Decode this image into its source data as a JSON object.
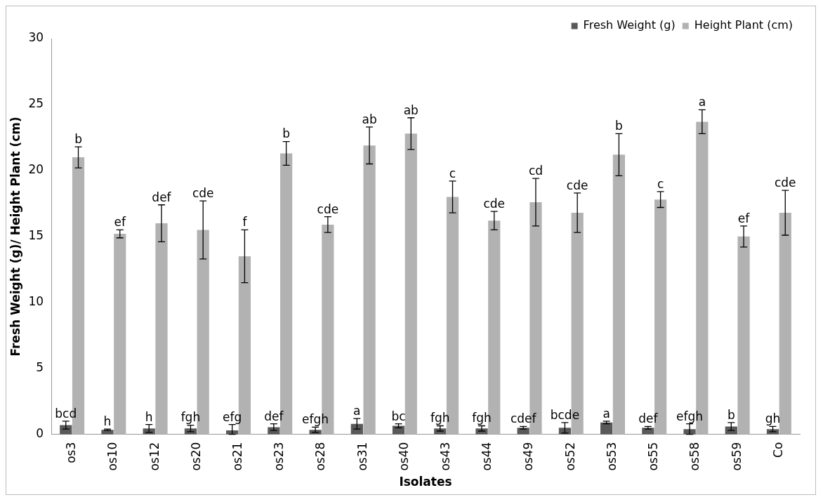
{
  "chart_data": {
    "type": "bar",
    "xlabel": "Isolates",
    "ylabel": "Fresh Weight (g)/ Height Plant (cm)",
    "categories": [
      "os3",
      "os10",
      "os12",
      "os20",
      "os21",
      "os23",
      "os28",
      "os31",
      "os40",
      "os43",
      "os44",
      "os49",
      "os52",
      "os53",
      "os55",
      "os58",
      "os59",
      "Co"
    ],
    "series": [
      {
        "name": "Fresh Weight (g)",
        "color": "#595959",
        "values": [
          0.7,
          0.35,
          0.45,
          0.45,
          0.3,
          0.55,
          0.35,
          0.8,
          0.65,
          0.45,
          0.45,
          0.5,
          0.5,
          0.9,
          0.5,
          0.4,
          0.6,
          0.4
        ],
        "errors": [
          0.3,
          0.05,
          0.3,
          0.25,
          [
            0,
            0.75
          ],
          0.25,
          0.2,
          0.4,
          0.15,
          0.2,
          0.2,
          0.1,
          0.4,
          0.1,
          0.1,
          0.4,
          0.3,
          0.2
        ],
        "value_labels": [
          "bcd",
          "h",
          "h",
          "fgh",
          "efg",
          "def",
          "efgh",
          "a",
          "bc",
          "fgh",
          "fgh",
          "cdef",
          "bcde",
          "a",
          "def",
          "efgh",
          "b",
          "gh"
        ]
      },
      {
        "name": "Height Plant (cm)",
        "color": "#b2b2b2",
        "values": [
          21.0,
          15.2,
          16.0,
          15.5,
          13.5,
          21.3,
          15.9,
          21.9,
          22.8,
          18.0,
          16.2,
          17.6,
          16.8,
          21.2,
          17.8,
          23.7,
          15.0,
          16.8
        ],
        "errors": [
          0.8,
          0.3,
          1.4,
          2.2,
          2.0,
          0.9,
          0.6,
          1.4,
          1.2,
          1.2,
          0.7,
          1.8,
          1.5,
          1.6,
          0.6,
          0.9,
          0.8,
          1.7
        ],
        "value_labels": [
          "b",
          "ef",
          "def",
          "cde",
          "f",
          "b",
          "cde",
          "ab",
          "ab",
          "c",
          "cde",
          "cd",
          "cde",
          "b",
          "c",
          "a",
          "ef",
          "cde"
        ]
      }
    ],
    "ylim": [
      0,
      30
    ],
    "yticks": [
      0,
      5,
      10,
      15,
      20,
      25,
      30
    ],
    "grid": false,
    "legend": "top right"
  }
}
